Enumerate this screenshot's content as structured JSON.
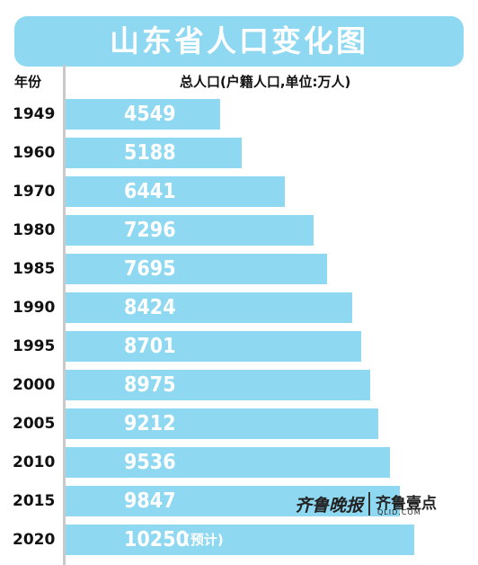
{
  "chart_data": {
    "type": "bar",
    "orientation": "horizontal",
    "title": "山东省人口变化图",
    "xlabel": "总人口(户籍人口,单位:万人)",
    "ylabel": "年份",
    "categories": [
      "1949",
      "1960",
      "1970",
      "1980",
      "1985",
      "1990",
      "1995",
      "2000",
      "2005",
      "2010",
      "2015",
      "2020"
    ],
    "values": [
      4549,
      5188,
      6441,
      7296,
      7695,
      8424,
      8701,
      8975,
      9212,
      9536,
      9847,
      10250
    ],
    "annotations": [
      {
        "category": "2020",
        "text": "(预计)"
      }
    ],
    "grid": false,
    "legend": "none",
    "colors": {
      "bar": "#8fd8f2",
      "title_bg": "#8fd8f2",
      "label": "#ffffff"
    }
  },
  "logo": {
    "paper": "齐鲁晚报",
    "brand": "齐鲁壹点",
    "url": "QLID.COM"
  }
}
